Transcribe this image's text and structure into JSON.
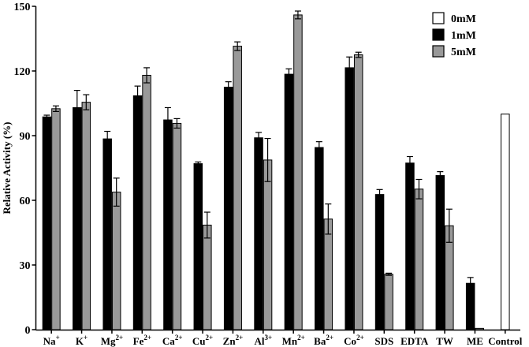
{
  "chart_data": {
    "type": "bar",
    "ylabel": "Relative Activity (%)",
    "xlabel": "",
    "ylim": [
      0,
      150
    ],
    "yticks": [
      0,
      30,
      60,
      90,
      120,
      150
    ],
    "grid": false,
    "legend_position": "top-right",
    "categories": [
      {
        "base": "Na",
        "sup": "+"
      },
      {
        "base": "K",
        "sup": "+"
      },
      {
        "base": "Mg",
        "sup": "2+"
      },
      {
        "base": "Fe",
        "sup": "2+"
      },
      {
        "base": "Ca",
        "sup": "2+"
      },
      {
        "base": "Cu",
        "sup": "2+"
      },
      {
        "base": "Zn",
        "sup": "2+"
      },
      {
        "base": "Al",
        "sup": "3+"
      },
      {
        "base": "Mn",
        "sup": "2+"
      },
      {
        "base": "Ba",
        "sup": "2+"
      },
      {
        "base": "Co",
        "sup": "2+"
      },
      {
        "base": "SDS",
        "sup": ""
      },
      {
        "base": "EDTA",
        "sup": ""
      },
      {
        "base": "TW",
        "sup": ""
      },
      {
        "base": "ME",
        "sup": ""
      },
      {
        "base": "Control",
        "sup": ""
      }
    ],
    "series": [
      {
        "name": "0mM",
        "color": "#ffffff",
        "values": [
          null,
          null,
          null,
          null,
          null,
          null,
          null,
          null,
          null,
          null,
          null,
          null,
          null,
          null,
          null,
          100
        ],
        "errors": [
          null,
          null,
          null,
          null,
          null,
          null,
          null,
          null,
          null,
          null,
          null,
          null,
          null,
          null,
          null,
          0
        ]
      },
      {
        "name": "1mM",
        "color": "#000000",
        "values": [
          98.7,
          103,
          88.5,
          108.5,
          97.3,
          77,
          112.5,
          89,
          118.5,
          84.5,
          121.5,
          62.7,
          77.3,
          71.5,
          21.5,
          null
        ],
        "errors": [
          0.8,
          8,
          3.5,
          4.5,
          5.7,
          0.8,
          2.5,
          2.5,
          2.5,
          2.7,
          5,
          2.3,
          3,
          1.8,
          2.7,
          null
        ]
      },
      {
        "name": "5mM",
        "color": "#999999",
        "values": [
          102.5,
          105.5,
          63.8,
          118,
          95.7,
          48.5,
          131.5,
          78.7,
          146,
          51.3,
          127.5,
          25.7,
          65.2,
          48.2,
          0.6,
          null
        ],
        "errors": [
          1.3,
          3.5,
          6.5,
          3.5,
          2.2,
          6,
          2,
          10,
          1.8,
          7,
          1.2,
          0.5,
          4.5,
          7.7,
          0,
          null
        ]
      }
    ]
  }
}
